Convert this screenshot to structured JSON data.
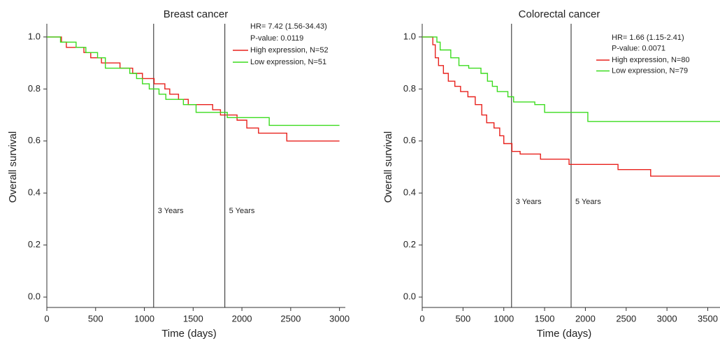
{
  "chart_data": [
    {
      "type": "step",
      "title": "Breast cancer",
      "x_label": "Time (days)",
      "y_label": "Overall survival",
      "annotations": [
        "HR= 7.42 (1.56-34.43)",
        "P-value: 0.0119"
      ],
      "xlim": [
        0,
        3060
      ],
      "ylim": [
        -0.04,
        1.04
      ],
      "xticks": [
        0,
        500,
        1000,
        1500,
        2000,
        2500,
        3000
      ],
      "yticks": [
        {
          "value": 0,
          "label": "0.0"
        },
        0.2,
        0.4,
        0.6,
        0.8,
        {
          "value": 1,
          "label": "1.0"
        }
      ],
      "reference_lines": [
        {
          "x": 1095,
          "label": "3 Years"
        },
        {
          "x": 1825,
          "label": "5 Years"
        }
      ],
      "series": [
        {
          "name": "High expression, N=52",
          "color": "#e8211c",
          "x": [
            0,
            150,
            200,
            380,
            450,
            560,
            750,
            880,
            980,
            1100,
            1210,
            1260,
            1350,
            1450,
            1700,
            1780,
            1950,
            2050,
            2170,
            2460,
            3000
          ],
          "values": [
            1.0,
            0.98,
            0.96,
            0.94,
            0.92,
            0.9,
            0.88,
            0.86,
            0.84,
            0.82,
            0.8,
            0.78,
            0.76,
            0.74,
            0.72,
            0.7,
            0.68,
            0.65,
            0.63,
            0.6,
            0.6
          ]
        },
        {
          "name": "Low expression, N=51",
          "color": "#3bdc1f",
          "x": [
            0,
            140,
            300,
            400,
            520,
            600,
            850,
            920,
            980,
            1050,
            1150,
            1220,
            1400,
            1530,
            1850,
            2280,
            3000
          ],
          "values": [
            1.0,
            0.98,
            0.96,
            0.94,
            0.92,
            0.88,
            0.86,
            0.84,
            0.82,
            0.8,
            0.78,
            0.76,
            0.74,
            0.71,
            0.69,
            0.66,
            0.66
          ]
        }
      ]
    },
    {
      "type": "step",
      "title": "Colorectal cancer",
      "x_label": "Time (days)",
      "y_label": "Overall survival",
      "annotations": [
        "HR= 1.66 (1.15-2.41)",
        "P-value: 0.0071"
      ],
      "xlim": [
        0,
        3650
      ],
      "ylim": [
        -0.04,
        1.04
      ],
      "xticks": [
        0,
        500,
        1000,
        1500,
        2000,
        2500,
        3000,
        3500
      ],
      "yticks": [
        {
          "value": 0,
          "label": "0.0"
        },
        0.2,
        0.4,
        0.6,
        0.8,
        {
          "value": 1,
          "label": "1.0"
        }
      ],
      "reference_lines": [
        {
          "x": 1095,
          "label": "3 Years"
        },
        {
          "x": 1825,
          "label": "5 Years"
        }
      ],
      "series": [
        {
          "name": "High expression, N=80",
          "color": "#e8211c",
          "x": [
            0,
            130,
            160,
            200,
            260,
            320,
            400,
            470,
            560,
            650,
            730,
            790,
            880,
            950,
            1000,
            1100,
            1200,
            1450,
            1800,
            2400,
            2800,
            3650
          ],
          "values": [
            1.0,
            0.97,
            0.92,
            0.89,
            0.86,
            0.83,
            0.81,
            0.79,
            0.77,
            0.74,
            0.7,
            0.67,
            0.65,
            0.62,
            0.59,
            0.56,
            0.55,
            0.53,
            0.51,
            0.49,
            0.465,
            0.465
          ]
        },
        {
          "name": "Low expression, N=79",
          "color": "#3bdc1f",
          "x": [
            0,
            180,
            220,
            350,
            450,
            570,
            720,
            800,
            860,
            920,
            1050,
            1120,
            1380,
            1500,
            2030,
            3650
          ],
          "values": [
            1.0,
            0.98,
            0.95,
            0.92,
            0.89,
            0.88,
            0.86,
            0.83,
            0.81,
            0.79,
            0.77,
            0.75,
            0.74,
            0.71,
            0.675,
            0.675
          ]
        }
      ]
    }
  ]
}
